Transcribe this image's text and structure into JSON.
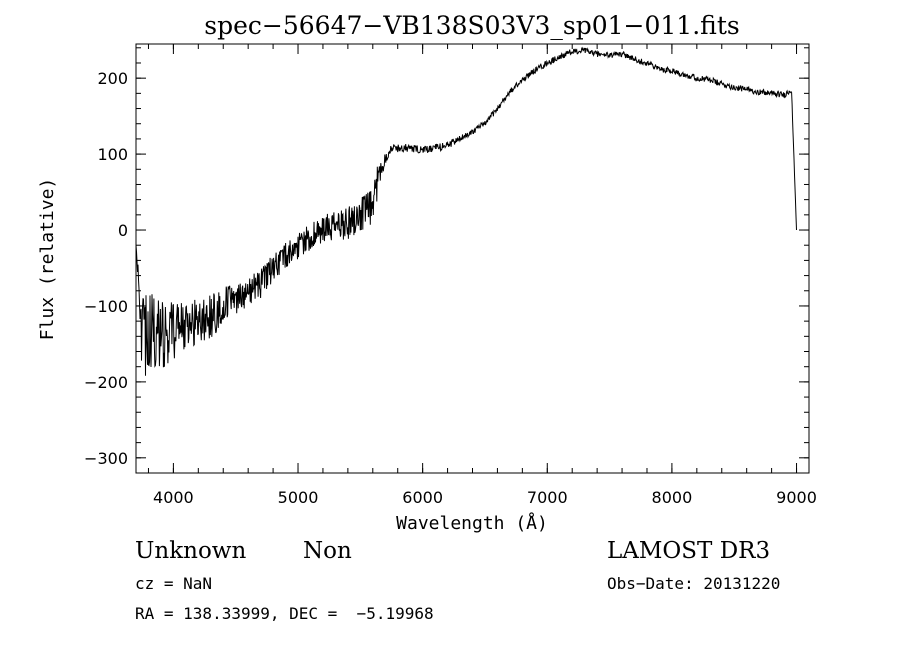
{
  "chart_data": {
    "type": "line",
    "title": "spec−56647−VB138S03V3_sp01−011.fits",
    "xlabel": "Wavelength (Å)",
    "ylabel": "Flux (relative)",
    "xlim": [
      3700,
      9100
    ],
    "ylim": [
      -320,
      245
    ],
    "x_ticks": [
      {
        "value": 4000,
        "label": "4000"
      },
      {
        "value": 5000,
        "label": "5000"
      },
      {
        "value": 6000,
        "label": "6000"
      },
      {
        "value": 7000,
        "label": "7000"
      },
      {
        "value": 8000,
        "label": "8000"
      },
      {
        "value": 9000,
        "label": "9000"
      }
    ],
    "y_ticks": [
      {
        "value": 200,
        "label": "200"
      },
      {
        "value": 100,
        "label": "100"
      },
      {
        "value": 0,
        "label": "0"
      },
      {
        "value": -100,
        "label": "−100"
      },
      {
        "value": -200,
        "label": "−200"
      },
      {
        "value": -300,
        "label": "−300"
      }
    ],
    "x_minor_step": 200,
    "y_minor_step": 20,
    "series": [
      {
        "name": "spectrum",
        "x": [
          3700,
          3750,
          3800,
          3900,
          4000,
          4100,
          4200,
          4300,
          4400,
          4500,
          4600,
          4700,
          4800,
          4900,
          5000,
          5100,
          5200,
          5300,
          5400,
          5500,
          5600,
          5650,
          5700,
          5750,
          5800,
          5900,
          6000,
          6100,
          6200,
          6300,
          6400,
          6500,
          6600,
          6700,
          6800,
          6900,
          7000,
          7100,
          7200,
          7300,
          7400,
          7500,
          7600,
          7700,
          7800,
          7900,
          8000,
          8100,
          8200,
          8300,
          8400,
          8500,
          8600,
          8700,
          8800,
          8900,
          8960,
          9000
        ],
        "y": [
          -20,
          -150,
          -130,
          -140,
          -130,
          -125,
          -120,
          -115,
          -100,
          -90,
          -80,
          -70,
          -50,
          -35,
          -20,
          -10,
          0,
          5,
          10,
          20,
          30,
          75,
          95,
          108,
          108,
          108,
          105,
          108,
          112,
          120,
          130,
          140,
          160,
          182,
          198,
          210,
          220,
          228,
          235,
          236,
          232,
          230,
          232,
          225,
          220,
          212,
          210,
          205,
          200,
          198,
          192,
          188,
          185,
          182,
          180,
          178,
          185,
          0
        ],
        "noise": [
          0,
          60,
          50,
          45,
          40,
          35,
          30,
          30,
          25,
          22,
          20,
          20,
          18,
          18,
          18,
          18,
          20,
          20,
          22,
          22,
          25,
          20,
          8,
          6,
          6,
          5,
          5,
          5,
          5,
          4,
          4,
          4,
          4,
          4,
          4,
          4,
          4,
          4,
          4,
          4,
          4,
          4,
          4,
          4,
          4,
          4,
          4,
          4,
          4,
          4,
          4,
          4,
          4,
          4,
          4,
          4,
          4,
          0
        ]
      }
    ]
  },
  "info": {
    "object_class": "Unknown",
    "object_subclass": "Non",
    "survey": "LAMOST DR3",
    "cz": "cz = NaN",
    "obs_date": "Obs−Date: 20131220",
    "coords": "RA = 138.33999, DEC =  −5.19968"
  }
}
